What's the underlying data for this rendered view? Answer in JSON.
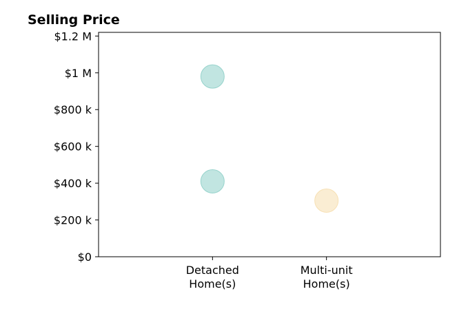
{
  "chart_data": {
    "type": "scatter",
    "title": "Selling Price",
    "xlabel": "",
    "ylabel": "",
    "categories": [
      [
        "Detached",
        "Home(s)"
      ],
      [
        "Multi-unit",
        "Home(s)"
      ]
    ],
    "x_positions": [
      1,
      2
    ],
    "xlim": [
      0,
      3
    ],
    "ylim": [
      0,
      1220000
    ],
    "y_ticks": [
      {
        "value": 0,
        "label": "$0"
      },
      {
        "value": 200000,
        "label": "$200 k"
      },
      {
        "value": 400000,
        "label": "$400 k"
      },
      {
        "value": 600000,
        "label": "$600 k"
      },
      {
        "value": 800000,
        "label": "$800 k"
      },
      {
        "value": 1000000,
        "label": "$1 M"
      },
      {
        "value": 1200000,
        "label": "$1.2 M"
      }
    ],
    "grid": false,
    "legend": "none",
    "points": [
      {
        "category": "Detached Home(s)",
        "x": 1,
        "y": 980000,
        "color": "#8ecfc8"
      },
      {
        "category": "Detached Home(s)",
        "x": 1,
        "y": 410000,
        "color": "#8ecfc8"
      },
      {
        "category": "Multi-unit Home(s)",
        "x": 2,
        "y": 305000,
        "color": "#f6deae"
      }
    ],
    "marker_opacity": 0.55
  }
}
